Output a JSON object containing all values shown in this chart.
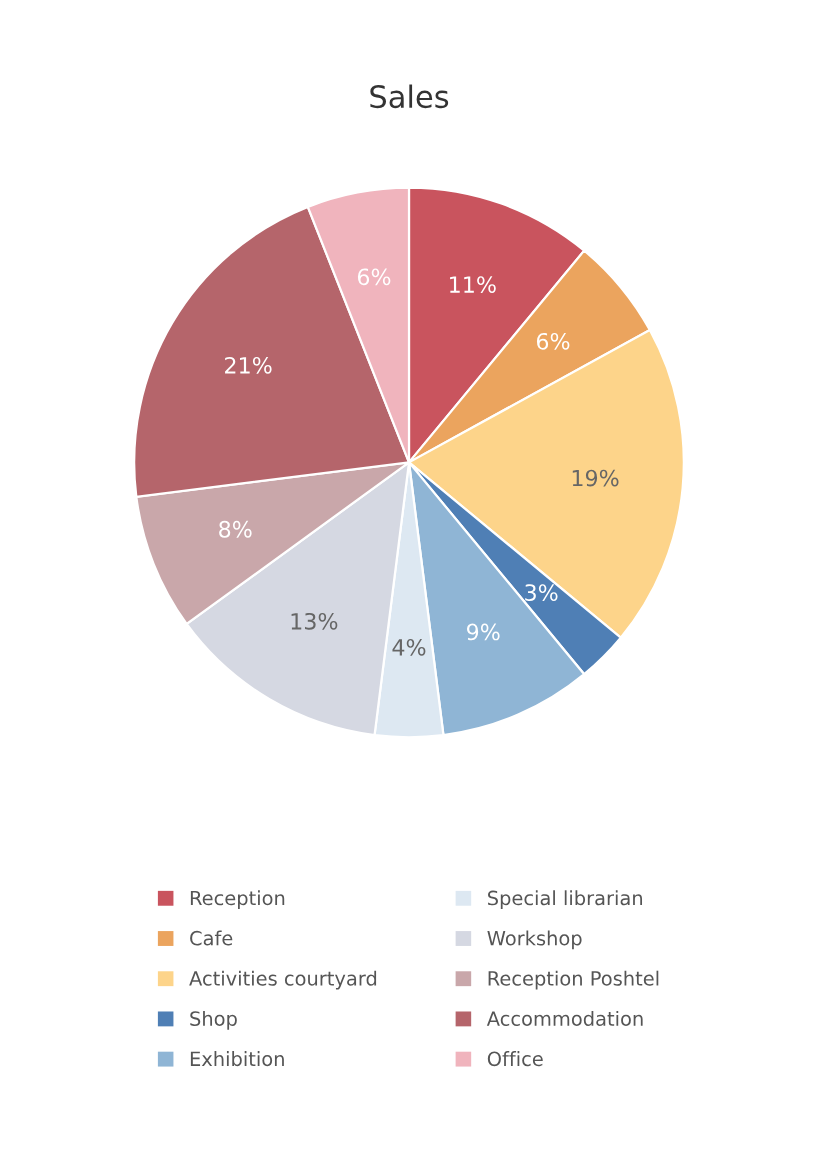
{
  "chart_data": {
    "type": "pie",
    "title": "Sales",
    "categories": [
      "Reception",
      "Cafe",
      "Activities courtyard",
      "Shop",
      "Exhibition",
      "Special librarian",
      "Workshop",
      "Reception Poshtel",
      "Accommodation",
      "Office"
    ],
    "values": [
      11,
      6,
      19,
      3,
      9,
      4,
      13,
      8,
      21,
      6
    ],
    "value_labels": [
      "11%",
      "6%",
      "19%",
      "3%",
      "9%",
      "4%",
      "13%",
      "8%",
      "21%",
      "6%"
    ],
    "colors": [
      "#c9545e",
      "#eba45e",
      "#fdd48a",
      "#4f7fb5",
      "#8fb5d5",
      "#dde8f2",
      "#d5d8e2",
      "#c9a7aa",
      "#b5656b",
      "#f0b4bd"
    ],
    "legend": "bottom"
  }
}
